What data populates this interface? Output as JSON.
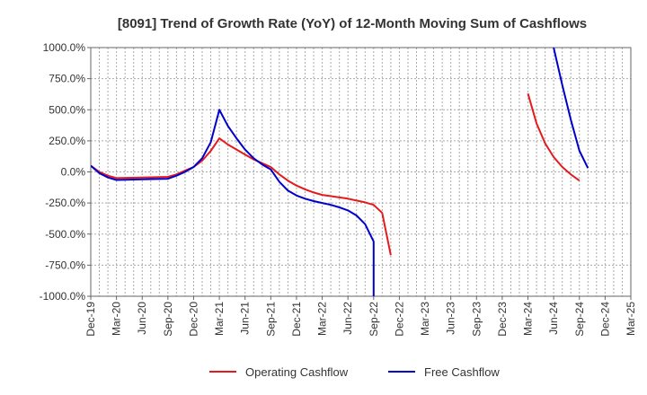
{
  "chart_data": {
    "type": "line",
    "title": "[8091]  Trend of Growth Rate (YoY) of 12-Month Moving Sum of Cashflows",
    "xlabel": "",
    "ylabel": "",
    "ylim": [
      -1000,
      1000
    ],
    "y_ticks": [
      "1000.0%",
      "750.0%",
      "500.0%",
      "250.0%",
      "0.0%",
      "-250.0%",
      "-500.0%",
      "-750.0%",
      "-1000.0%"
    ],
    "y_tick_values": [
      1000,
      750,
      500,
      250,
      0,
      -250,
      -500,
      -750,
      -1000
    ],
    "x_ticks": [
      "Dec-19",
      "Mar-20",
      "Jun-20",
      "Sep-20",
      "Dec-20",
      "Mar-21",
      "Jun-21",
      "Sep-21",
      "Dec-21",
      "Mar-22",
      "Jun-22",
      "Sep-22",
      "Dec-22",
      "Mar-23",
      "Jun-23",
      "Sep-23",
      "Dec-23",
      "Mar-24",
      "Jun-24",
      "Sep-24",
      "Dec-24",
      "Mar-25"
    ],
    "grid": true,
    "legend_position": "bottom",
    "series": [
      {
        "name": "Operating Cashflow",
        "color": "#e41a1c",
        "segments": [
          [
            [
              "Dec-19",
              50
            ],
            [
              "Jan-20",
              0
            ],
            [
              "Feb-20",
              -30
            ],
            [
              "Mar-20",
              -50
            ],
            [
              "Jun-20",
              -45
            ],
            [
              "Sep-20",
              -40
            ],
            [
              "Oct-20",
              -20
            ],
            [
              "Nov-20",
              10
            ],
            [
              "Dec-20",
              40
            ],
            [
              "Jan-21",
              90
            ],
            [
              "Feb-21",
              170
            ],
            [
              "Mar-21",
              270
            ],
            [
              "Apr-21",
              220
            ],
            [
              "May-21",
              180
            ],
            [
              "Jun-21",
              140
            ],
            [
              "Jul-21",
              100
            ],
            [
              "Aug-21",
              70
            ],
            [
              "Sep-21",
              40
            ],
            [
              "Oct-21",
              -20
            ],
            [
              "Nov-21",
              -70
            ],
            [
              "Dec-21",
              -110
            ],
            [
              "Jan-22",
              -140
            ],
            [
              "Feb-22",
              -165
            ],
            [
              "Mar-22",
              -185
            ],
            [
              "Apr-22",
              -195
            ],
            [
              "May-22",
              -205
            ],
            [
              "Jun-22",
              -215
            ],
            [
              "Jul-22",
              -230
            ],
            [
              "Aug-22",
              -245
            ],
            [
              "Sep-22",
              -265
            ],
            [
              "Oct-22",
              -330
            ],
            [
              "Nov-22",
              -670
            ]
          ],
          [
            [
              "Mar-24",
              630
            ],
            [
              "Apr-24",
              390
            ],
            [
              "May-24",
              230
            ],
            [
              "Jun-24",
              120
            ],
            [
              "Jul-24",
              40
            ],
            [
              "Aug-24",
              -20
            ],
            [
              "Sep-24",
              -70
            ]
          ]
        ]
      },
      {
        "name": "Free Cashflow",
        "color": "#0000cc",
        "segments": [
          [
            [
              "Dec-19",
              50
            ],
            [
              "Jan-20",
              -10
            ],
            [
              "Feb-20",
              -45
            ],
            [
              "Mar-20",
              -65
            ],
            [
              "Jun-20",
              -60
            ],
            [
              "Sep-20",
              -55
            ],
            [
              "Oct-20",
              -30
            ],
            [
              "Nov-20",
              0
            ],
            [
              "Dec-20",
              40
            ],
            [
              "Jan-21",
              110
            ],
            [
              "Feb-21",
              240
            ],
            [
              "Mar-21",
              500
            ],
            [
              "Apr-21",
              370
            ],
            [
              "May-21",
              270
            ],
            [
              "Jun-21",
              180
            ],
            [
              "Jul-21",
              110
            ],
            [
              "Aug-21",
              60
            ],
            [
              "Sep-21",
              20
            ],
            [
              "Oct-21",
              -80
            ],
            [
              "Nov-21",
              -150
            ],
            [
              "Dec-21",
              -190
            ],
            [
              "Jan-22",
              -215
            ],
            [
              "Feb-22",
              -235
            ],
            [
              "Mar-22",
              -250
            ],
            [
              "Apr-22",
              -265
            ],
            [
              "May-22",
              -285
            ],
            [
              "Jun-22",
              -310
            ],
            [
              "Jul-22",
              -350
            ],
            [
              "Aug-22",
              -420
            ],
            [
              "Sep-22",
              -560
            ],
            [
              "Sep-22",
              -1000
            ]
          ],
          [
            [
              "Jun-24",
              1000
            ],
            [
              "Jul-24",
              700
            ],
            [
              "Aug-24",
              420
            ],
            [
              "Sep-24",
              170
            ],
            [
              "Oct-24",
              30
            ]
          ]
        ]
      }
    ]
  }
}
